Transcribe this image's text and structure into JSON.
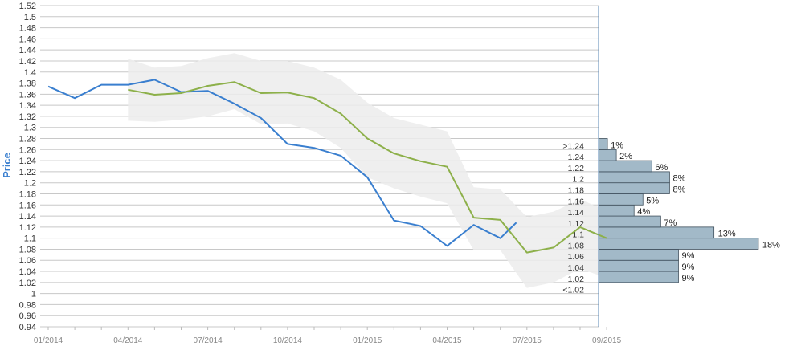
{
  "chart_data": {
    "type": "line",
    "ylabel": "Price",
    "ylim": [
      0.94,
      1.52
    ],
    "y_ticks": [
      "0.94",
      "0.96",
      "0.98",
      "1",
      "1.02",
      "1.04",
      "1.06",
      "1.08",
      "1.1",
      "1.12",
      "1.14",
      "1.16",
      "1.18",
      "1.2",
      "1.22",
      "1.24",
      "1.26",
      "1.28",
      "1.3",
      "1.32",
      "1.34",
      "1.36",
      "1.38",
      "1.4",
      "1.42",
      "1.44",
      "1.46",
      "1.48",
      "1.5",
      "1.52"
    ],
    "x_ticks": [
      "01/2014",
      "04/2014",
      "07/2014",
      "10/2014",
      "01/2015",
      "04/2015",
      "07/2015",
      "09/2015"
    ],
    "grid": true,
    "series": [
      {
        "role": "actual",
        "color": "#3a7fcf",
        "x": [
          0,
          1,
          2,
          3,
          4,
          5,
          6,
          7,
          8,
          9,
          10,
          11,
          12,
          13,
          14,
          15,
          16,
          17,
          17.6
        ],
        "y": [
          1.374,
          1.353,
          1.377,
          1.377,
          1.386,
          1.364,
          1.366,
          1.343,
          1.317,
          1.27,
          1.263,
          1.249,
          1.21,
          1.132,
          1.122,
          1.086,
          1.124,
          1.1,
          1.128
        ]
      },
      {
        "role": "forecast",
        "color": "#8db04a",
        "x": [
          3,
          4,
          5,
          6,
          7,
          8,
          9,
          10,
          11,
          12,
          13,
          14,
          15,
          16,
          17,
          18,
          19,
          20,
          21
        ],
        "y": [
          1.368,
          1.359,
          1.362,
          1.375,
          1.382,
          1.362,
          1.363,
          1.353,
          1.325,
          1.28,
          1.253,
          1.239,
          1.229,
          1.137,
          1.133,
          1.074,
          1.083,
          1.12,
          1.1
        ]
      }
    ],
    "band": {
      "color": "#ececec",
      "x": [
        3,
        4,
        5,
        6,
        7,
        8,
        9,
        10,
        11,
        12,
        13,
        14,
        15,
        16,
        17,
        18,
        19,
        20,
        21
      ],
      "upper": [
        1.424,
        1.408,
        1.411,
        1.425,
        1.434,
        1.42,
        1.42,
        1.408,
        1.386,
        1.345,
        1.317,
        1.305,
        1.293,
        1.192,
        1.188,
        1.138,
        1.148,
        1.17,
        1.15
      ],
      "lower": [
        1.312,
        1.31,
        1.314,
        1.32,
        1.333,
        1.306,
        1.307,
        1.293,
        1.263,
        1.21,
        1.19,
        1.175,
        1.163,
        1.078,
        1.078,
        1.01,
        1.02,
        1.045,
        1.028
      ]
    },
    "distribution": {
      "type": "bar",
      "color": "#a2b9c8",
      "categories": [
        "<1.02",
        "1.02",
        "1.04",
        "1.06",
        "1.08",
        "1.1",
        "1.12",
        "1.14",
        "1.16",
        "1.18",
        "1.2",
        "1.22",
        "1.24",
        ">1.24"
      ],
      "values": [
        0,
        9,
        9,
        9,
        18,
        13,
        7,
        4,
        5,
        8,
        8,
        6,
        2,
        1
      ],
      "pct_labels": [
        "",
        "9%",
        "9%",
        "9%",
        "18%",
        "13%",
        "7%",
        "4%",
        "5%",
        "8%",
        "8%",
        "6%",
        "2%",
        "1%"
      ]
    },
    "colors": {
      "ylabel": "#3a7fcf",
      "grid": "#c8c8c8",
      "bar_stroke": "#3f4f5c",
      "vertical_axis": "#5a87b5"
    }
  }
}
